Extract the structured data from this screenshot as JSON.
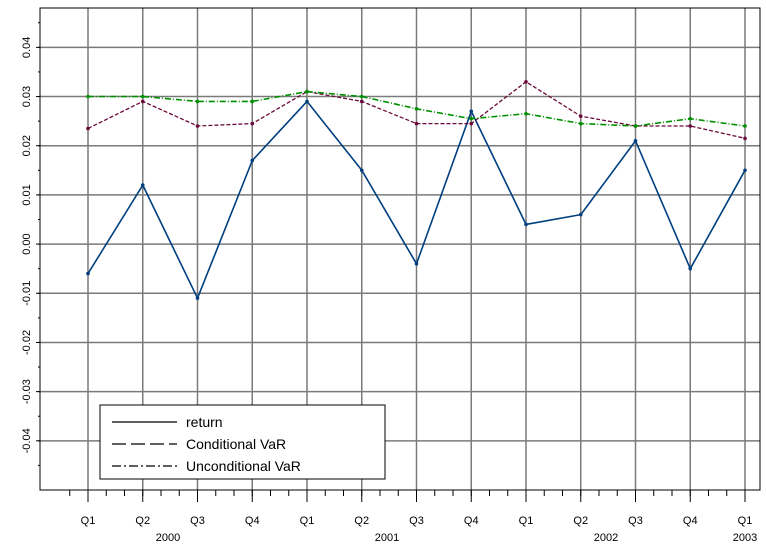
{
  "chart_data": {
    "type": "line",
    "title": "",
    "xlabel": "",
    "ylabel": "",
    "x_range": [
      "2000-Q1",
      "2003-Q1"
    ],
    "ylim": [
      -0.05,
      0.048
    ],
    "grid": true,
    "legend_position": "bottom-left",
    "x_ticks": [
      {
        "quarter": "2000-Q1",
        "label": "Q1",
        "year": "2000"
      },
      {
        "quarter": "2000-Q2",
        "label": "Q2",
        "year": ""
      },
      {
        "quarter": "2000-Q3",
        "label": "Q3",
        "year": ""
      },
      {
        "quarter": "2000-Q4",
        "label": "Q4",
        "year": ""
      },
      {
        "quarter": "2001-Q1",
        "label": "Q1",
        "year": "2001"
      },
      {
        "quarter": "2001-Q2",
        "label": "Q2",
        "year": ""
      },
      {
        "quarter": "2001-Q3",
        "label": "Q3",
        "year": ""
      },
      {
        "quarter": "2001-Q4",
        "label": "Q4",
        "year": ""
      },
      {
        "quarter": "2002-Q1",
        "label": "Q1",
        "year": "2002"
      },
      {
        "quarter": "2002-Q2",
        "label": "Q2",
        "year": ""
      },
      {
        "quarter": "2002-Q3",
        "label": "Q3",
        "year": ""
      },
      {
        "quarter": "2002-Q4",
        "label": "Q4",
        "year": ""
      },
      {
        "quarter": "2003-Q1",
        "label": "Q1",
        "year": "2003"
      }
    ],
    "y_ticks": [
      {
        "value": 0.04,
        "label": "0.04"
      },
      {
        "value": 0.03,
        "label": "0.03"
      },
      {
        "value": 0.02,
        "label": "0.02"
      },
      {
        "value": 0.01,
        "label": "0.01"
      },
      {
        "value": 0.0,
        "label": "0.00"
      },
      {
        "value": -0.01,
        "label": "-0.01"
      },
      {
        "value": -0.02,
        "label": "-0.02"
      },
      {
        "value": -0.03,
        "label": "-0.03"
      },
      {
        "value": -0.04,
        "label": "-0.04"
      }
    ],
    "legend": [
      {
        "name": "return",
        "style": "solid"
      },
      {
        "name": "Conditional VaR",
        "style": "dashed"
      },
      {
        "name": "Unconditional VaR",
        "style": "dashdot"
      }
    ],
    "colors": {
      "return": "#003f7f",
      "conditional_var": "#6b0a3a",
      "unconditional_var": "#009000",
      "grid": "#7a7a7a"
    },
    "series": [
      {
        "name": "return",
        "x": [
          "2000-Q1",
          "2000-Q2",
          "2000-Q3",
          "2000-Q4",
          "2001-Q1",
          "2001-Q2",
          "2001-Q3",
          "2001-Q4",
          "2002-Q1",
          "2002-Q2",
          "2002-Q3",
          "2002-Q4",
          "2003-Q1"
        ],
        "values": [
          -0.006,
          0.012,
          -0.011,
          0.017,
          0.029,
          0.015,
          -0.004,
          0.027,
          0.004,
          0.006,
          0.021,
          -0.005,
          0.015
        ]
      },
      {
        "name": "Conditional VaR",
        "x": [
          "2000-Q1",
          "2000-Q2",
          "2000-Q3",
          "2000-Q4",
          "2001-Q1",
          "2001-Q2",
          "2001-Q3",
          "2001-Q4",
          "2002-Q1",
          "2002-Q2",
          "2002-Q3",
          "2002-Q4",
          "2003-Q1"
        ],
        "values": [
          0.0235,
          0.029,
          0.024,
          0.0245,
          0.031,
          0.029,
          0.0245,
          0.0245,
          0.033,
          0.026,
          0.024,
          0.024,
          0.0215
        ]
      },
      {
        "name": "Unconditional VaR",
        "x": [
          "2000-Q1",
          "2000-Q2",
          "2000-Q3",
          "2000-Q4",
          "2001-Q1",
          "2001-Q2",
          "2001-Q3",
          "2001-Q4",
          "2002-Q1",
          "2002-Q2",
          "2002-Q3",
          "2002-Q4",
          "2003-Q1"
        ],
        "values": [
          0.03,
          0.03,
          0.029,
          0.029,
          0.031,
          0.03,
          0.0275,
          0.0255,
          0.0265,
          0.0245,
          0.024,
          0.0255,
          0.024
        ]
      }
    ]
  }
}
